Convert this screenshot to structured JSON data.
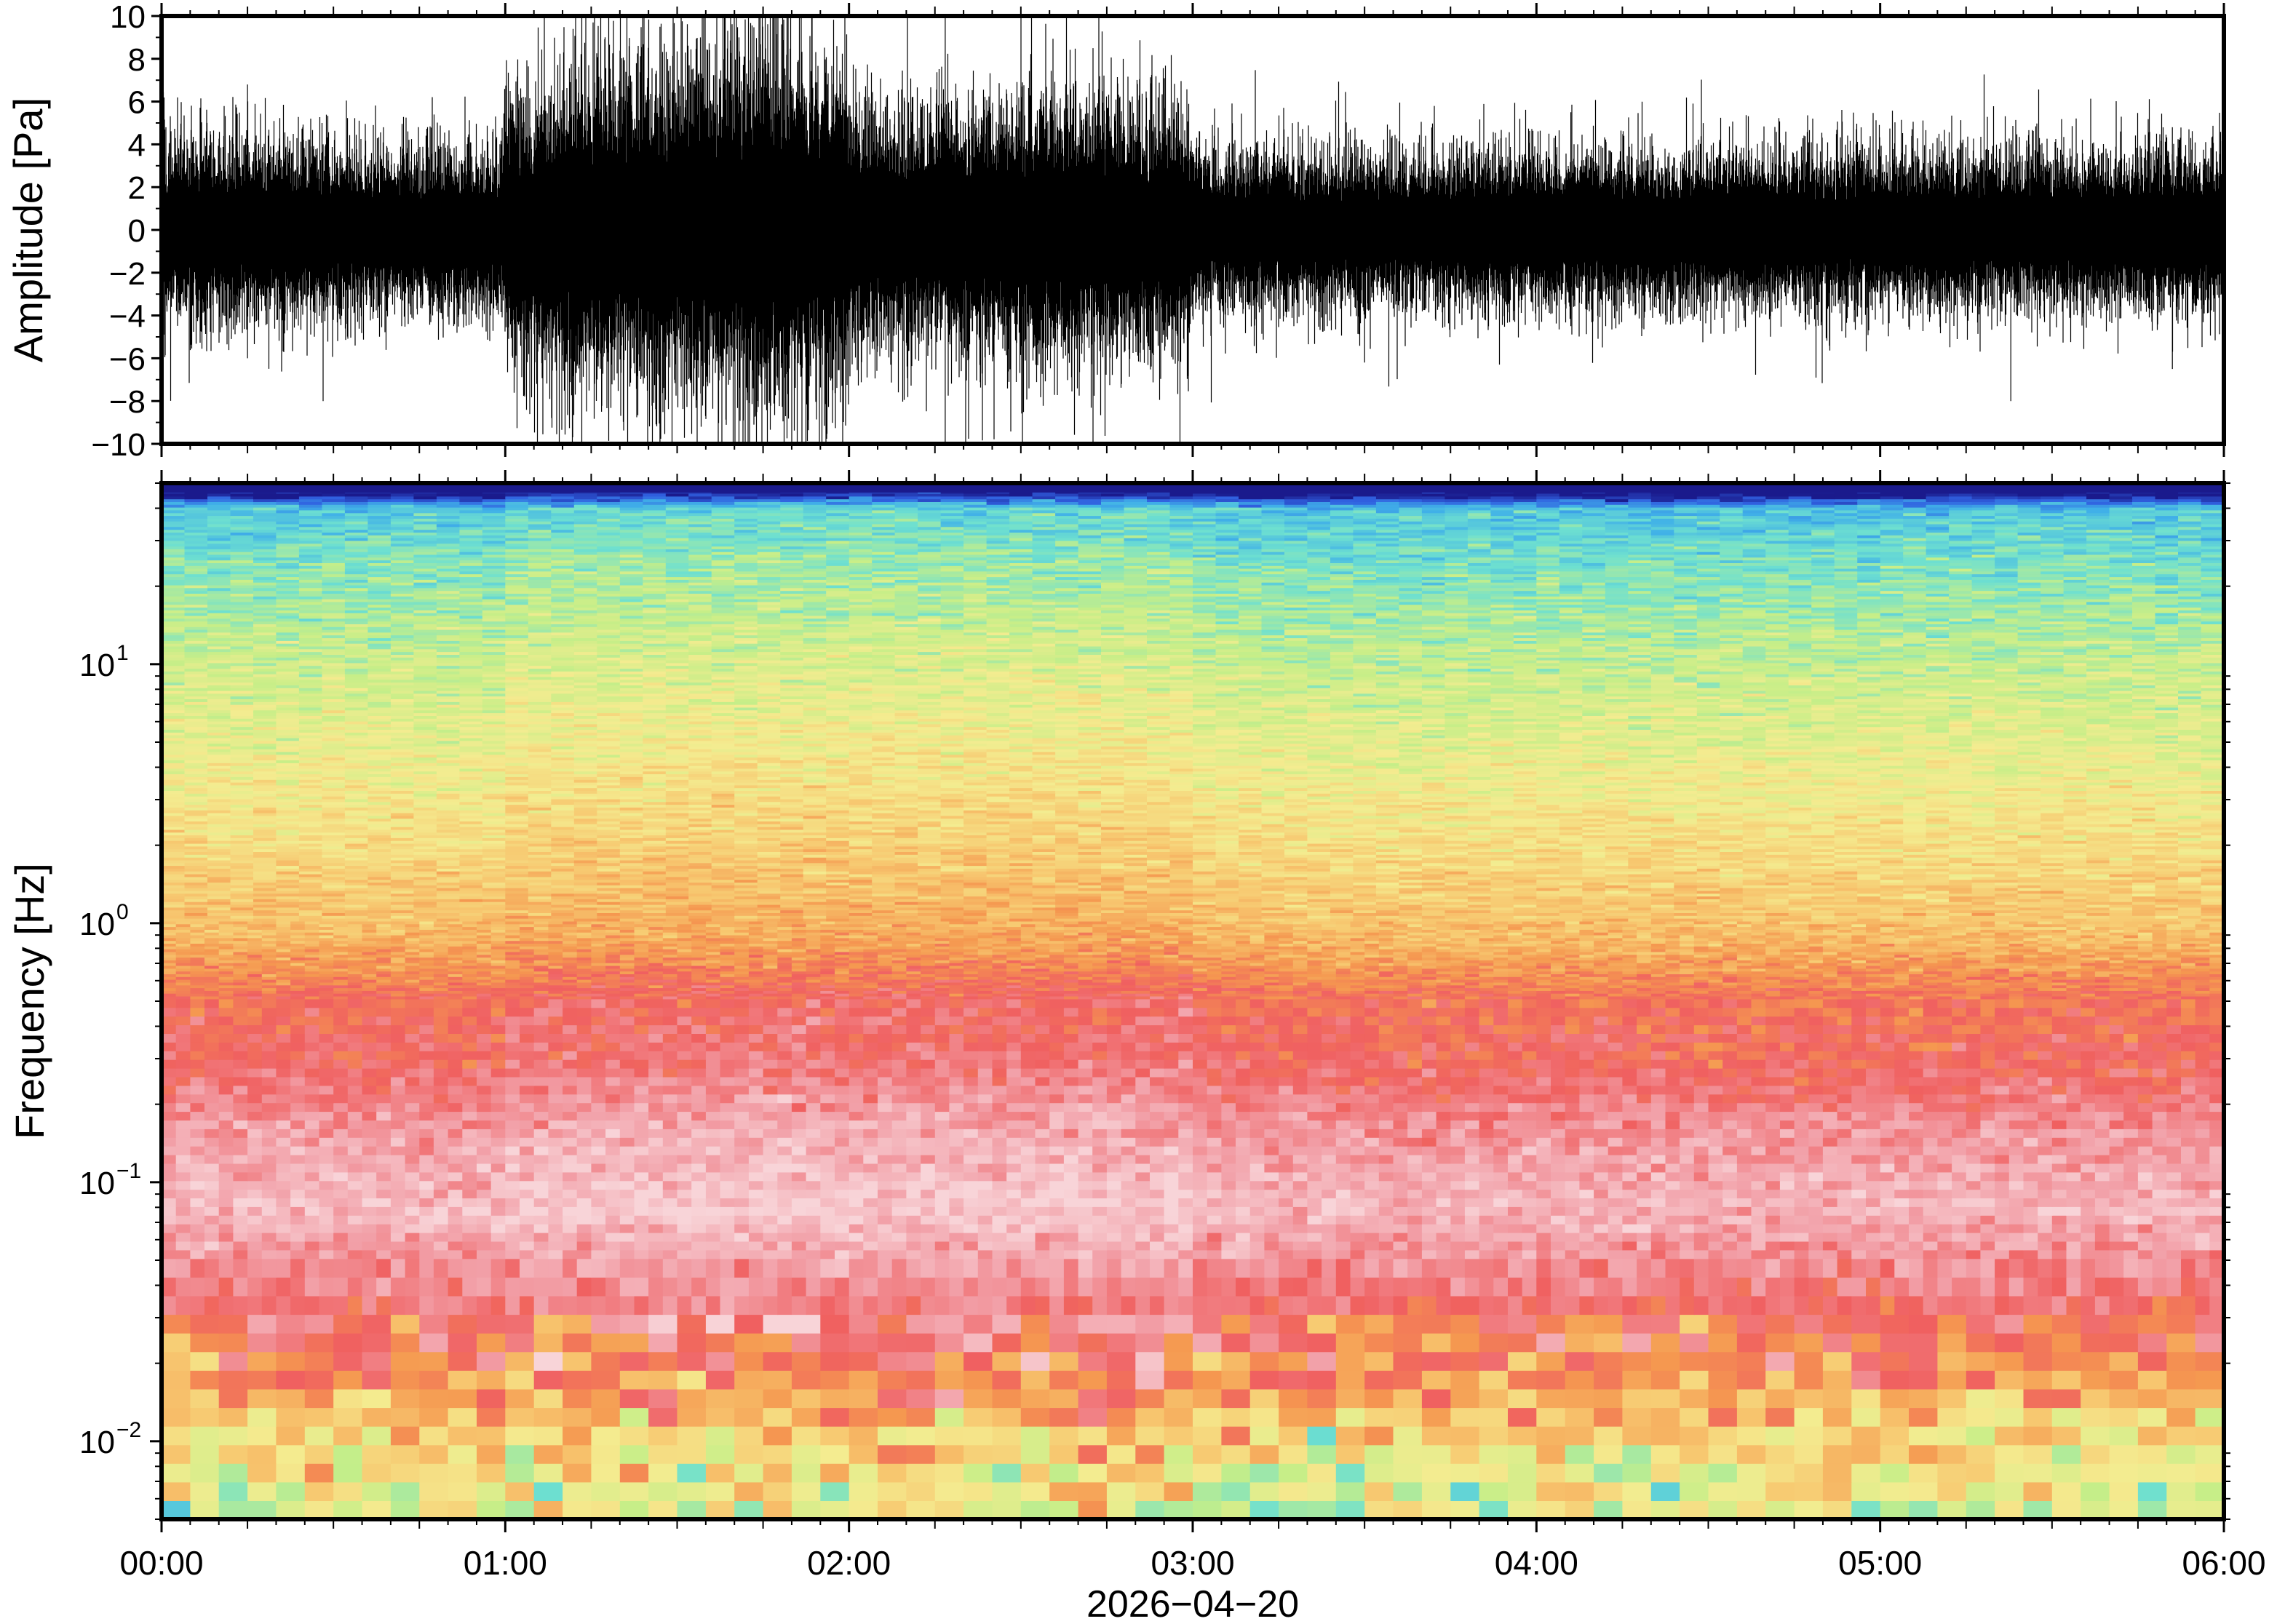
{
  "chart_data": [
    {
      "type": "line",
      "panel": "waveform",
      "ylabel": "Amplitude [Pa]",
      "ylim": [
        -10,
        10
      ],
      "yticks": [
        -10,
        -8,
        -6,
        -4,
        -2,
        0,
        2,
        4,
        6,
        8,
        10
      ],
      "ytick_labels": [
        "−10",
        "−8",
        "−6",
        "−4",
        "−2",
        "0",
        "2",
        "4",
        "6",
        "8",
        "10"
      ],
      "x_range": [
        "00:00",
        "06:00"
      ],
      "series": [
        {
          "color": "#000000",
          "envelope_time_hours": [
            0,
            0.25,
            0.5,
            0.75,
            0.99,
            1.0,
            1.25,
            1.5,
            1.75,
            1.99,
            2.0,
            2.25,
            2.5,
            2.75,
            2.99,
            3.0,
            3.5,
            4.0,
            4.5,
            5.0,
            5.5,
            6.0
          ],
          "typical_peak_pa": [
            3.5,
            3.5,
            3.2,
            3.0,
            3.2,
            5.5,
            6.0,
            6.5,
            7.0,
            6.0,
            4.5,
            4.5,
            5.0,
            5.0,
            4.5,
            3.0,
            3.0,
            3.0,
            3.0,
            3.0,
            3.0,
            3.2
          ],
          "spikes": [
            {
              "t": 2.28,
              "min": -10,
              "max": 10
            },
            {
              "t": 1.45,
              "min": -10,
              "max": 9.5
            },
            {
              "t": 1.68,
              "min": -10,
              "max": 9.0
            },
            {
              "t": 2.71,
              "min": -10,
              "max": 8.5
            },
            {
              "t": 1.28,
              "min": -8.5,
              "max": 6.5
            },
            {
              "t": 0.47,
              "min": -8.0,
              "max": 4.0
            },
            {
              "t": 5.38,
              "min": -8.0,
              "max": 4.0
            },
            {
              "t": 5.85,
              "min": -6.5,
              "max": 4.8
            },
            {
              "t": 0.25,
              "min": -6.0,
              "max": 6.8
            },
            {
              "t": 3.5,
              "min": -6.2,
              "max": 4.0
            },
            {
              "t": 4.1,
              "min": -4.5,
              "max": 5.5
            }
          ]
        }
      ]
    },
    {
      "type": "heatmap",
      "panel": "spectrogram",
      "ylabel": "Frequency [Hz]",
      "yscale": "log",
      "ylim": [
        0.005,
        50
      ],
      "yticks": [
        0.01,
        0.1,
        1,
        10
      ],
      "ytick_labels": [
        {
          "base": "10",
          "exp": "−2"
        },
        {
          "base": "10",
          "exp": "−1"
        },
        {
          "base": "10",
          "exp": "0"
        },
        {
          "base": "10",
          "exp": "1"
        }
      ],
      "colormap": [
        "#1a1a8c",
        "#3060e0",
        "#40b0e8",
        "#6ee0d0",
        "#c6ee88",
        "#f4ec90",
        "#f7c870",
        "#f59850",
        "#f06060",
        "#f2a0a8",
        "#f8d4d8"
      ],
      "relative_power_bands": [
        {
          "freq_hz": 45,
          "level": 0.0
        },
        {
          "freq_hz": 40,
          "level": 0.25
        },
        {
          "freq_hz": 25,
          "level": 0.32
        },
        {
          "freq_hz": 12,
          "level": 0.4
        },
        {
          "freq_hz": 5,
          "level": 0.47
        },
        {
          "freq_hz": 2,
          "level": 0.55
        },
        {
          "freq_hz": 0.9,
          "level": 0.63
        },
        {
          "freq_hz": 0.5,
          "level": 0.78
        },
        {
          "freq_hz": 0.3,
          "level": 0.8
        },
        {
          "freq_hz": 0.15,
          "level": 0.9
        },
        {
          "freq_hz": 0.08,
          "level": 0.95
        },
        {
          "freq_hz": 0.04,
          "level": 0.85
        },
        {
          "freq_hz": 0.025,
          "level": 0.78
        },
        {
          "freq_hz": 0.015,
          "level": 0.66
        },
        {
          "freq_hz": 0.008,
          "level": 0.5
        },
        {
          "freq_hz": 0.005,
          "level": 0.45
        }
      ]
    }
  ],
  "x_axis": {
    "tick_labels": [
      "00:00",
      "01:00",
      "02:00",
      "03:00",
      "04:00",
      "05:00",
      "06:00"
    ],
    "date_label": "2026−04−20"
  }
}
